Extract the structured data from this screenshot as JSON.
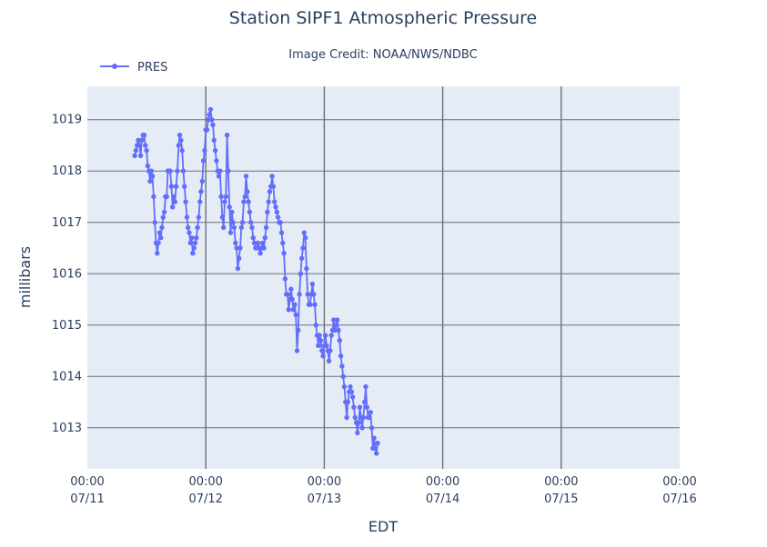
{
  "colors": {
    "series": "#636efa",
    "plot_bg": "#e5ecf6",
    "gridline": "#6b6f7a",
    "text": "#2a3f5f"
  },
  "chart_data": {
    "type": "line",
    "title": "Station SIPF1 Atmospheric Pressure",
    "subtitle": "Image Credit: NOAA/NWS/NDBC",
    "xlabel": "EDT",
    "ylabel": "millibars",
    "grid": true,
    "legend_position": "top-left",
    "xlim": [
      0,
      5
    ],
    "ylim": [
      1012.2,
      1019.65
    ],
    "x_ticks": [
      {
        "value": 0,
        "time": "00:00",
        "date": "07/11"
      },
      {
        "value": 1,
        "time": "00:00",
        "date": "07/12"
      },
      {
        "value": 2,
        "time": "00:00",
        "date": "07/13"
      },
      {
        "value": 3,
        "time": "00:00",
        "date": "07/14"
      },
      {
        "value": 4,
        "time": "00:00",
        "date": "07/15"
      },
      {
        "value": 5,
        "time": "00:00",
        "date": "07/16"
      }
    ],
    "y_ticks": [
      1013,
      1014,
      1015,
      1016,
      1017,
      1018,
      1019
    ],
    "series": [
      {
        "name": "PRES",
        "points": [
          [
            0.4,
            1018.3
          ],
          [
            0.41,
            1018.4
          ],
          [
            0.42,
            1018.5
          ],
          [
            0.43,
            1018.6
          ],
          [
            0.44,
            1018.5
          ],
          [
            0.45,
            1018.3
          ],
          [
            0.46,
            1018.6
          ],
          [
            0.47,
            1018.7
          ],
          [
            0.48,
            1018.7
          ],
          [
            0.49,
            1018.5
          ],
          [
            0.5,
            1018.4
          ],
          [
            0.51,
            1018.1
          ],
          [
            0.52,
            1018.0
          ],
          [
            0.53,
            1017.8
          ],
          [
            0.54,
            1018.0
          ],
          [
            0.55,
            1017.9
          ],
          [
            0.56,
            1017.5
          ],
          [
            0.57,
            1017.0
          ],
          [
            0.58,
            1016.6
          ],
          [
            0.59,
            1016.4
          ],
          [
            0.6,
            1016.6
          ],
          [
            0.61,
            1016.8
          ],
          [
            0.62,
            1016.7
          ],
          [
            0.63,
            1016.9
          ],
          [
            0.64,
            1017.1
          ],
          [
            0.65,
            1017.2
          ],
          [
            0.66,
            1017.5
          ],
          [
            0.67,
            1017.5
          ],
          [
            0.68,
            1018.0
          ],
          [
            0.69,
            1018.0
          ],
          [
            0.7,
            1018.0
          ],
          [
            0.71,
            1017.7
          ],
          [
            0.72,
            1017.3
          ],
          [
            0.73,
            1017.5
          ],
          [
            0.74,
            1017.4
          ],
          [
            0.75,
            1017.7
          ],
          [
            0.76,
            1018.0
          ],
          [
            0.77,
            1018.5
          ],
          [
            0.78,
            1018.7
          ],
          [
            0.79,
            1018.6
          ],
          [
            0.8,
            1018.4
          ],
          [
            0.81,
            1018.0
          ],
          [
            0.82,
            1017.7
          ],
          [
            0.83,
            1017.4
          ],
          [
            0.84,
            1017.1
          ],
          [
            0.85,
            1016.9
          ],
          [
            0.86,
            1016.8
          ],
          [
            0.87,
            1016.6
          ],
          [
            0.88,
            1016.7
          ],
          [
            0.89,
            1016.4
          ],
          [
            0.9,
            1016.5
          ],
          [
            0.91,
            1016.6
          ],
          [
            0.92,
            1016.7
          ],
          [
            0.93,
            1016.9
          ],
          [
            0.94,
            1017.1
          ],
          [
            0.95,
            1017.4
          ],
          [
            0.96,
            1017.6
          ],
          [
            0.97,
            1017.8
          ],
          [
            0.98,
            1018.2
          ],
          [
            0.99,
            1018.4
          ],
          [
            1.0,
            1018.8
          ],
          [
            1.01,
            1018.8
          ],
          [
            1.02,
            1019.0
          ],
          [
            1.03,
            1019.1
          ],
          [
            1.04,
            1019.2
          ],
          [
            1.05,
            1019.0
          ],
          [
            1.06,
            1018.9
          ],
          [
            1.07,
            1018.6
          ],
          [
            1.08,
            1018.4
          ],
          [
            1.09,
            1018.2
          ],
          [
            1.1,
            1018.0
          ],
          [
            1.11,
            1017.9
          ],
          [
            1.12,
            1018.0
          ],
          [
            1.13,
            1017.5
          ],
          [
            1.14,
            1017.1
          ],
          [
            1.15,
            1016.9
          ],
          [
            1.16,
            1017.4
          ],
          [
            1.17,
            1017.5
          ],
          [
            1.18,
            1018.7
          ],
          [
            1.19,
            1018.0
          ],
          [
            1.2,
            1017.3
          ],
          [
            1.21,
            1016.8
          ],
          [
            1.22,
            1017.2
          ],
          [
            1.23,
            1017.0
          ],
          [
            1.24,
            1016.9
          ],
          [
            1.25,
            1016.6
          ],
          [
            1.26,
            1016.5
          ],
          [
            1.27,
            1016.1
          ],
          [
            1.28,
            1016.3
          ],
          [
            1.29,
            1016.5
          ],
          [
            1.3,
            1016.9
          ],
          [
            1.31,
            1017.0
          ],
          [
            1.32,
            1017.4
          ],
          [
            1.33,
            1017.5
          ],
          [
            1.34,
            1017.9
          ],
          [
            1.35,
            1017.6
          ],
          [
            1.36,
            1017.4
          ],
          [
            1.37,
            1017.2
          ],
          [
            1.38,
            1017.0
          ],
          [
            1.39,
            1016.9
          ],
          [
            1.4,
            1016.7
          ],
          [
            1.41,
            1016.6
          ],
          [
            1.42,
            1016.5
          ],
          [
            1.43,
            1016.5
          ],
          [
            1.44,
            1016.6
          ],
          [
            1.45,
            1016.5
          ],
          [
            1.46,
            1016.4
          ],
          [
            1.47,
            1016.5
          ],
          [
            1.48,
            1016.6
          ],
          [
            1.49,
            1016.5
          ],
          [
            1.5,
            1016.7
          ],
          [
            1.51,
            1016.9
          ],
          [
            1.52,
            1017.2
          ],
          [
            1.53,
            1017.4
          ],
          [
            1.54,
            1017.6
          ],
          [
            1.55,
            1017.7
          ],
          [
            1.56,
            1017.9
          ],
          [
            1.57,
            1017.7
          ],
          [
            1.58,
            1017.4
          ],
          [
            1.59,
            1017.3
          ],
          [
            1.6,
            1017.2
          ],
          [
            1.61,
            1017.1
          ],
          [
            1.62,
            1017.0
          ],
          [
            1.63,
            1017.0
          ],
          [
            1.64,
            1016.8
          ],
          [
            1.65,
            1016.6
          ],
          [
            1.66,
            1016.4
          ],
          [
            1.67,
            1015.9
          ],
          [
            1.68,
            1015.6
          ],
          [
            1.69,
            1015.6
          ],
          [
            1.7,
            1015.3
          ],
          [
            1.71,
            1015.5
          ],
          [
            1.72,
            1015.7
          ],
          [
            1.73,
            1015.5
          ],
          [
            1.74,
            1015.3
          ],
          [
            1.75,
            1015.4
          ],
          [
            1.76,
            1015.2
          ],
          [
            1.77,
            1014.5
          ],
          [
            1.78,
            1014.9
          ],
          [
            1.79,
            1015.6
          ],
          [
            1.8,
            1016.0
          ],
          [
            1.81,
            1016.3
          ],
          [
            1.82,
            1016.5
          ],
          [
            1.83,
            1016.8
          ],
          [
            1.84,
            1016.7
          ],
          [
            1.85,
            1016.1
          ],
          [
            1.86,
            1015.6
          ],
          [
            1.87,
            1015.4
          ],
          [
            1.88,
            1015.4
          ],
          [
            1.89,
            1015.6
          ],
          [
            1.9,
            1015.8
          ],
          [
            1.91,
            1015.6
          ],
          [
            1.92,
            1015.4
          ],
          [
            1.93,
            1015.0
          ],
          [
            1.94,
            1014.8
          ],
          [
            1.95,
            1014.6
          ],
          [
            1.96,
            1014.8
          ],
          [
            1.97,
            1014.7
          ],
          [
            1.98,
            1014.5
          ],
          [
            1.99,
            1014.4
          ],
          [
            2.0,
            1014.6
          ],
          [
            2.01,
            1014.8
          ],
          [
            2.02,
            1014.6
          ],
          [
            2.03,
            1014.5
          ],
          [
            2.04,
            1014.3
          ],
          [
            2.05,
            1014.5
          ],
          [
            2.06,
            1014.8
          ],
          [
            2.07,
            1014.9
          ],
          [
            2.08,
            1015.1
          ],
          [
            2.09,
            1014.9
          ],
          [
            2.1,
            1015.0
          ],
          [
            2.11,
            1015.1
          ],
          [
            2.12,
            1014.9
          ],
          [
            2.13,
            1014.7
          ],
          [
            2.14,
            1014.4
          ],
          [
            2.15,
            1014.2
          ],
          [
            2.16,
            1014.0
          ],
          [
            2.17,
            1013.8
          ],
          [
            2.18,
            1013.5
          ],
          [
            2.19,
            1013.2
          ],
          [
            2.2,
            1013.5
          ],
          [
            2.21,
            1013.7
          ],
          [
            2.22,
            1013.8
          ],
          [
            2.23,
            1013.7
          ],
          [
            2.24,
            1013.6
          ],
          [
            2.25,
            1013.4
          ],
          [
            2.26,
            1013.2
          ],
          [
            2.27,
            1013.1
          ],
          [
            2.28,
            1012.9
          ],
          [
            2.29,
            1013.1
          ],
          [
            2.3,
            1013.4
          ],
          [
            2.31,
            1013.2
          ],
          [
            2.32,
            1013.0
          ],
          [
            2.33,
            1013.2
          ],
          [
            2.34,
            1013.5
          ],
          [
            2.35,
            1013.8
          ],
          [
            2.36,
            1013.4
          ],
          [
            2.37,
            1013.2
          ],
          [
            2.38,
            1013.2
          ],
          [
            2.39,
            1013.3
          ],
          [
            2.4,
            1013.0
          ],
          [
            2.41,
            1012.6
          ],
          [
            2.42,
            1012.8
          ],
          [
            2.43,
            1012.6
          ],
          [
            2.44,
            1012.5
          ],
          [
            2.45,
            1012.7
          ]
        ]
      }
    ]
  }
}
